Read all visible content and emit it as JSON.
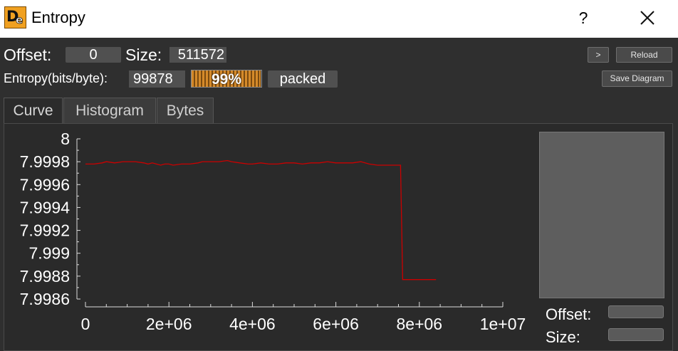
{
  "window": {
    "title": "Entropy",
    "help": "?"
  },
  "toolbar": {
    "offset_label": "Offset:",
    "offset_value": "0",
    "size_label": "Size:",
    "size_value": "511572",
    "next_label": ">",
    "reload_label": "Reload",
    "entropy_label": "Entropy(bits/byte):",
    "entropy_value": "99878",
    "progress_text": "99%",
    "progress_percent": 99,
    "status_value": "packed",
    "save_diagram_label": "Save Diagram"
  },
  "tabs": [
    {
      "label": "Curve",
      "active": true
    },
    {
      "label": "Histogram",
      "active": false
    },
    {
      "label": "Bytes",
      "active": false
    }
  ],
  "side_panel": {
    "offset_label": "Offset:",
    "size_label": "Size:"
  },
  "colors": {
    "curve": "#cc0000",
    "accent": "#d58a2a"
  },
  "chart_data": {
    "type": "line",
    "title": "",
    "xlabel": "",
    "ylabel": "",
    "xlim": [
      0,
      10000000
    ],
    "ylim": [
      7.9986,
      8.0
    ],
    "x_ticks": [
      0,
      2000000,
      4000000,
      6000000,
      8000000,
      10000000
    ],
    "x_tick_labels": [
      "0",
      "2e+06",
      "4e+06",
      "6e+06",
      "8e+06",
      "1e+07"
    ],
    "y_ticks": [
      8.0,
      7.9998,
      7.9996,
      7.9994,
      7.9992,
      7.999,
      7.9988,
      7.9986
    ],
    "y_tick_labels": [
      "8",
      "7.9998",
      "7.9996",
      "7.9994",
      "7.9992",
      "7.999",
      "7.9988",
      "7.9986"
    ],
    "grid": false,
    "series": [
      {
        "x": [
          0,
          200000,
          400000,
          500000,
          700000,
          900000,
          1200000,
          1400000,
          1500000,
          1600000,
          1800000,
          1900000,
          2000000,
          2100000,
          2300000,
          2500000,
          2700000,
          2800000,
          3000000,
          3200000,
          3400000,
          3500000,
          3700000,
          3900000,
          4000000,
          4200000,
          4400000,
          4600000,
          4800000,
          5000000,
          5200000,
          5400000,
          5600000,
          5800000,
          6000000,
          6200000,
          6400000,
          6600000,
          6800000,
          7000000,
          7200000,
          7400000,
          7500000,
          7550000,
          7600000,
          7700000,
          8000000,
          8400000
        ],
        "y": [
          7.99978,
          7.99978,
          7.99979,
          7.9998,
          7.99979,
          7.9998,
          7.9998,
          7.99979,
          7.99978,
          7.99979,
          7.99977,
          7.99978,
          7.99978,
          7.99977,
          7.99978,
          7.99978,
          7.99979,
          7.9998,
          7.9998,
          7.9998,
          7.99981,
          7.9998,
          7.99979,
          7.99978,
          7.99978,
          7.99979,
          7.99978,
          7.99978,
          7.99979,
          7.99979,
          7.99978,
          7.99979,
          7.99979,
          7.9998,
          7.99979,
          7.99979,
          7.99979,
          7.9998,
          7.99978,
          7.99977,
          7.99977,
          7.99977,
          7.99977,
          7.99977,
          7.99877,
          7.99877,
          7.99877,
          7.99877
        ]
      }
    ]
  }
}
